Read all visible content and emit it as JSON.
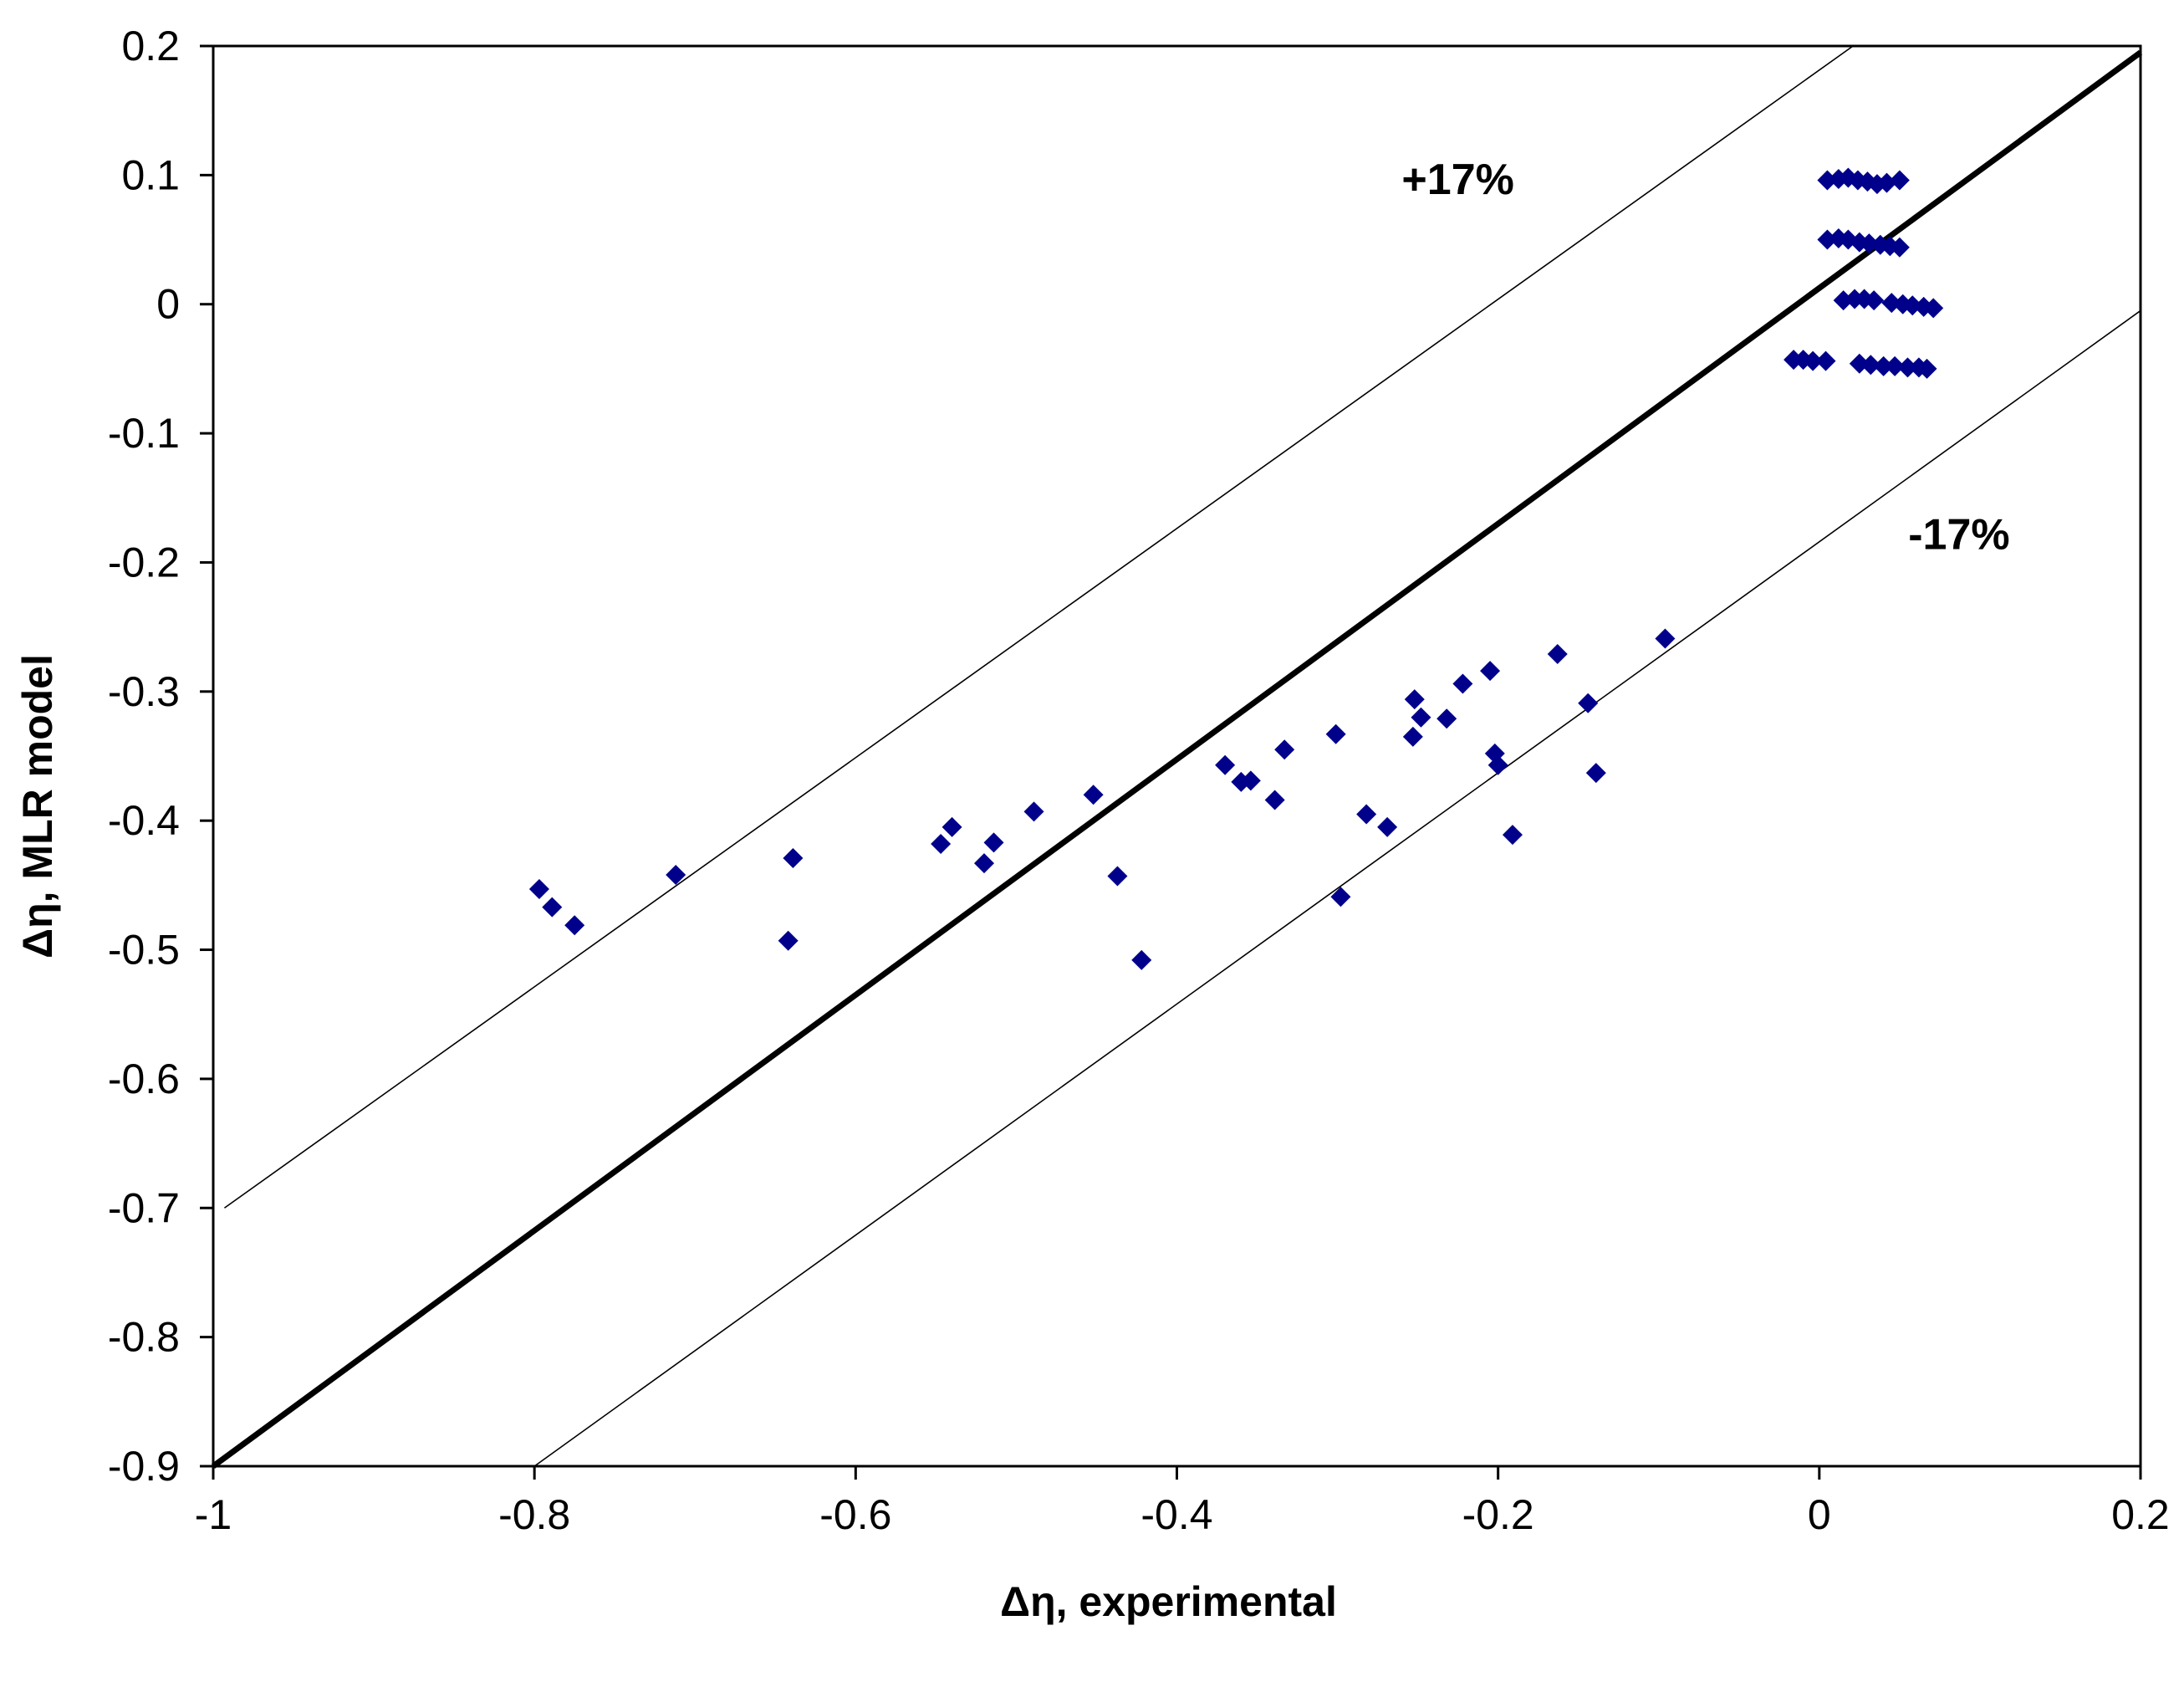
{
  "chart_data": {
    "type": "scatter",
    "title": "",
    "xlabel": "Δη, experimental",
    "ylabel": "Δη, MLR model",
    "xlim": [
      -1,
      0.2
    ],
    "ylim": [
      -0.9,
      0.2
    ],
    "xticks": [
      -1,
      -0.8,
      -0.6,
      -0.4,
      -0.2,
      0,
      0.2
    ],
    "yticks": [
      0.2,
      0.1,
      0,
      -0.1,
      -0.2,
      -0.3,
      -0.4,
      -0.5,
      -0.6,
      -0.7,
      -0.8,
      -0.9
    ],
    "xtick_labels": [
      "-1",
      "-0.8",
      "-0.6",
      "-0.4",
      "-0.2",
      "0",
      "0.2"
    ],
    "ytick_labels": [
      "0.2",
      "0.1",
      "0",
      "-0.1",
      "-0.2",
      "-0.3",
      "-0.4",
      "-0.5",
      "-0.6",
      "-0.7",
      "-0.8",
      "-0.9"
    ],
    "grid": false,
    "marker_color": "#00008B",
    "reference_lines": [
      {
        "name": "y = x",
        "points": [
          [
            -1,
            -0.9
          ],
          [
            0.2,
            0.195
          ]
        ],
        "weight": "thick"
      },
      {
        "name": "+17%",
        "points": [
          [
            -0.993,
            -0.7
          ],
          [
            0.021,
            0.2
          ]
        ],
        "weight": "thin"
      },
      {
        "name": "-17%",
        "points": [
          [
            -0.8,
            -0.9
          ],
          [
            0.2,
            -0.005
          ]
        ],
        "weight": "thin"
      }
    ],
    "annotations": [
      {
        "text": "+17%",
        "x": -0.225,
        "y": 0.097
      },
      {
        "text": "-17%",
        "x": 0.087,
        "y": -0.178
      }
    ],
    "series": [
      {
        "name": "data",
        "points": [
          [
            -0.797,
            -0.453
          ],
          [
            -0.789,
            -0.467
          ],
          [
            -0.775,
            -0.481
          ],
          [
            -0.712,
            -0.442
          ],
          [
            -0.639,
            -0.429
          ],
          [
            -0.642,
            -0.493
          ],
          [
            -0.547,
            -0.418
          ],
          [
            -0.54,
            -0.405
          ],
          [
            -0.52,
            -0.433
          ],
          [
            -0.514,
            -0.417
          ],
          [
            -0.489,
            -0.393
          ],
          [
            -0.452,
            -0.38
          ],
          [
            -0.437,
            -0.443
          ],
          [
            -0.422,
            -0.508
          ],
          [
            -0.37,
            -0.357
          ],
          [
            -0.36,
            -0.37
          ],
          [
            -0.354,
            -0.369
          ],
          [
            -0.339,
            -0.384
          ],
          [
            -0.333,
            -0.345
          ],
          [
            -0.301,
            -0.333
          ],
          [
            -0.298,
            -0.459
          ],
          [
            -0.282,
            -0.395
          ],
          [
            -0.269,
            -0.405
          ],
          [
            -0.253,
            -0.335
          ],
          [
            -0.252,
            -0.306
          ],
          [
            -0.248,
            -0.32
          ],
          [
            -0.232,
            -0.321
          ],
          [
            -0.222,
            -0.294
          ],
          [
            -0.205,
            -0.284
          ],
          [
            -0.202,
            -0.348
          ],
          [
            -0.2,
            -0.357
          ],
          [
            -0.191,
            -0.411
          ],
          [
            -0.163,
            -0.271
          ],
          [
            -0.144,
            -0.309
          ],
          [
            -0.139,
            -0.363
          ],
          [
            -0.096,
            -0.259
          ],
          [
            0.005,
            0.096
          ],
          [
            0.012,
            0.097
          ],
          [
            0.018,
            0.098
          ],
          [
            0.024,
            0.096
          ],
          [
            0.03,
            0.095
          ],
          [
            0.036,
            0.093
          ],
          [
            0.042,
            0.094
          ],
          [
            0.05,
            0.096
          ],
          [
            0.005,
            0.05
          ],
          [
            0.012,
            0.051
          ],
          [
            0.018,
            0.05
          ],
          [
            0.025,
            0.048
          ],
          [
            0.031,
            0.047
          ],
          [
            0.038,
            0.046
          ],
          [
            0.044,
            0.045
          ],
          [
            0.05,
            0.044
          ],
          [
            0.015,
            0.003
          ],
          [
            0.022,
            0.004
          ],
          [
            0.028,
            0.004
          ],
          [
            0.034,
            0.003
          ],
          [
            0.045,
            0.001
          ],
          [
            0.052,
            0.0
          ],
          [
            0.058,
            -0.001
          ],
          [
            0.065,
            -0.002
          ],
          [
            0.071,
            -0.003
          ],
          [
            -0.016,
            -0.043
          ],
          [
            -0.01,
            -0.043
          ],
          [
            -0.004,
            -0.044
          ],
          [
            0.004,
            -0.044
          ],
          [
            0.025,
            -0.046
          ],
          [
            0.032,
            -0.047
          ],
          [
            0.04,
            -0.048
          ],
          [
            0.047,
            -0.048
          ],
          [
            0.055,
            -0.049
          ],
          [
            0.062,
            -0.049
          ],
          [
            0.067,
            -0.05
          ]
        ]
      }
    ]
  }
}
